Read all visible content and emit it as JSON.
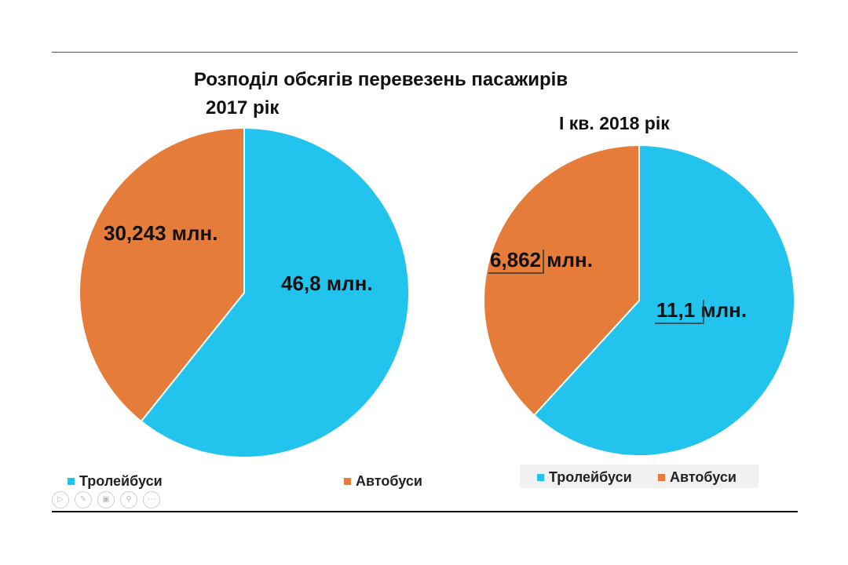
{
  "chart_data": [
    {
      "type": "pie",
      "title": "Розподіл обсягів перевезень пасажирів",
      "subtitle": "2017 рік",
      "categories": [
        "Тролейбуси",
        "Автобуси"
      ],
      "values": [
        46.8,
        30.243
      ],
      "data_labels": [
        "46,8 млн.",
        "30,243 млн."
      ],
      "colors": [
        "#22c4ee",
        "#e57c3a"
      ],
      "legend_position": "bottom"
    },
    {
      "type": "pie",
      "subtitle": "І кв. 2018 рік",
      "categories": [
        "Тролейбуси",
        "Автобуси"
      ],
      "values": [
        11.1,
        6.862
      ],
      "data_labels": [
        "11,1 млн.",
        "6,862 млн."
      ],
      "colors": [
        "#22c4ee",
        "#e57c3a"
      ],
      "legend_position": "bottom"
    }
  ],
  "toolbar_icons": [
    "play-icon",
    "pen-icon",
    "slides-icon",
    "zoom-icon",
    "more-icon"
  ]
}
